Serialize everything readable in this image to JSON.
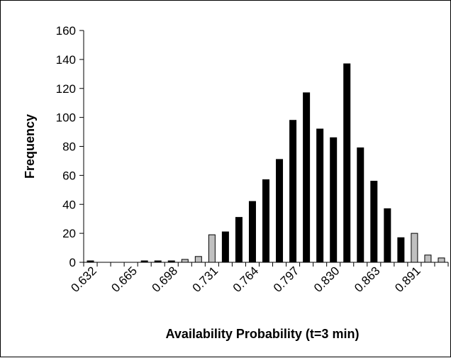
{
  "chart_data": {
    "type": "bar",
    "title": "",
    "xlabel": "Availability Probability (t=3 min)",
    "ylabel": "Frequency",
    "ylim": [
      0,
      160
    ],
    "yticks": [
      0,
      20,
      40,
      60,
      80,
      100,
      120,
      140,
      160
    ],
    "xtick_labels": [
      "0.632",
      "0.665",
      "0.698",
      "0.731",
      "0.764",
      "0.797",
      "0.830",
      "0.863",
      "0.891"
    ],
    "grid": false,
    "legend": "none",
    "bars": [
      {
        "value": 1,
        "highlight": false
      },
      {
        "value": 0,
        "highlight": false
      },
      {
        "value": 0,
        "highlight": false
      },
      {
        "value": 0,
        "highlight": false
      },
      {
        "value": 1,
        "highlight": false
      },
      {
        "value": 1,
        "highlight": false
      },
      {
        "value": 1,
        "highlight": false
      },
      {
        "value": 2,
        "highlight": true
      },
      {
        "value": 4,
        "highlight": true
      },
      {
        "value": 19,
        "highlight": true
      },
      {
        "value": 21,
        "highlight": false
      },
      {
        "value": 31,
        "highlight": false
      },
      {
        "value": 42,
        "highlight": false
      },
      {
        "value": 57,
        "highlight": false
      },
      {
        "value": 71,
        "highlight": false
      },
      {
        "value": 98,
        "highlight": false
      },
      {
        "value": 117,
        "highlight": false
      },
      {
        "value": 92,
        "highlight": false
      },
      {
        "value": 86,
        "highlight": false
      },
      {
        "value": 137,
        "highlight": false
      },
      {
        "value": 79,
        "highlight": false
      },
      {
        "value": 56,
        "highlight": false
      },
      {
        "value": 37,
        "highlight": false
      },
      {
        "value": 17,
        "highlight": false
      },
      {
        "value": 20,
        "highlight": true
      },
      {
        "value": 5,
        "highlight": true
      },
      {
        "value": 3,
        "highlight": true
      }
    ],
    "colors": {
      "bar": "#000000",
      "highlight_bar": "#c0c0c0",
      "outline": "#000000"
    }
  }
}
